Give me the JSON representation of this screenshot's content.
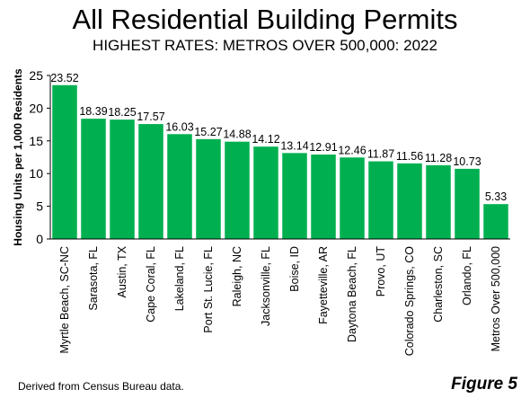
{
  "chart_data": {
    "type": "bar",
    "title": "All Residential Building Permits",
    "subtitle": "HIGHEST RATES: METROS OVER 500,000: 2022",
    "ylabel": "Housing Units per 1,000 Residents",
    "xlabel": "",
    "ylim": [
      0,
      25
    ],
    "yticks": [
      0,
      5,
      10,
      15,
      20,
      25
    ],
    "grid": false,
    "bar_color": "#00b050",
    "categories": [
      "Myrtle Beach, SC-NC",
      "Sarasota, FL",
      "Austin, TX",
      "Cape Coral, FL",
      "Lakeland, FL",
      "Port St. Lucie, FL",
      "Raleigh, NC",
      "Jacksonville, FL",
      "Boise, ID",
      "Fayetteville, AR",
      "Daytona Beach, FL",
      "Provo, UT",
      "Colorado Springs, CO",
      "Charleston, SC",
      "Orlando, FL",
      "Metros Over 500,000"
    ],
    "values": [
      23.52,
      18.39,
      18.25,
      17.57,
      16.03,
      15.27,
      14.88,
      14.12,
      13.14,
      12.91,
      12.46,
      11.87,
      11.56,
      11.28,
      10.73,
      5.33
    ],
    "data_labels": [
      "23.52",
      "18.39",
      "18.25",
      "17.57",
      "16.03",
      "15.27",
      "14.88",
      "14.12",
      "13.14",
      "12.91",
      "12.46",
      "11.87",
      "11.56",
      "11.28",
      "10.73",
      "5.33"
    ]
  },
  "footer": {
    "source": "Derived from Census Bureau data.",
    "figure": "Figure 5"
  }
}
